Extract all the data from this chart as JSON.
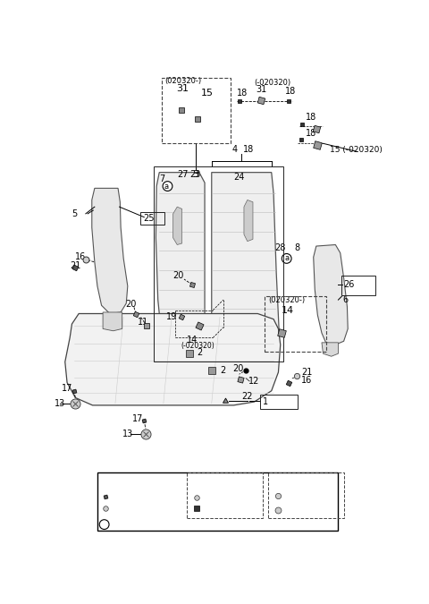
{
  "bg_color": "#ffffff",
  "fig_width": 4.8,
  "fig_height": 6.75,
  "dpi": 100
}
